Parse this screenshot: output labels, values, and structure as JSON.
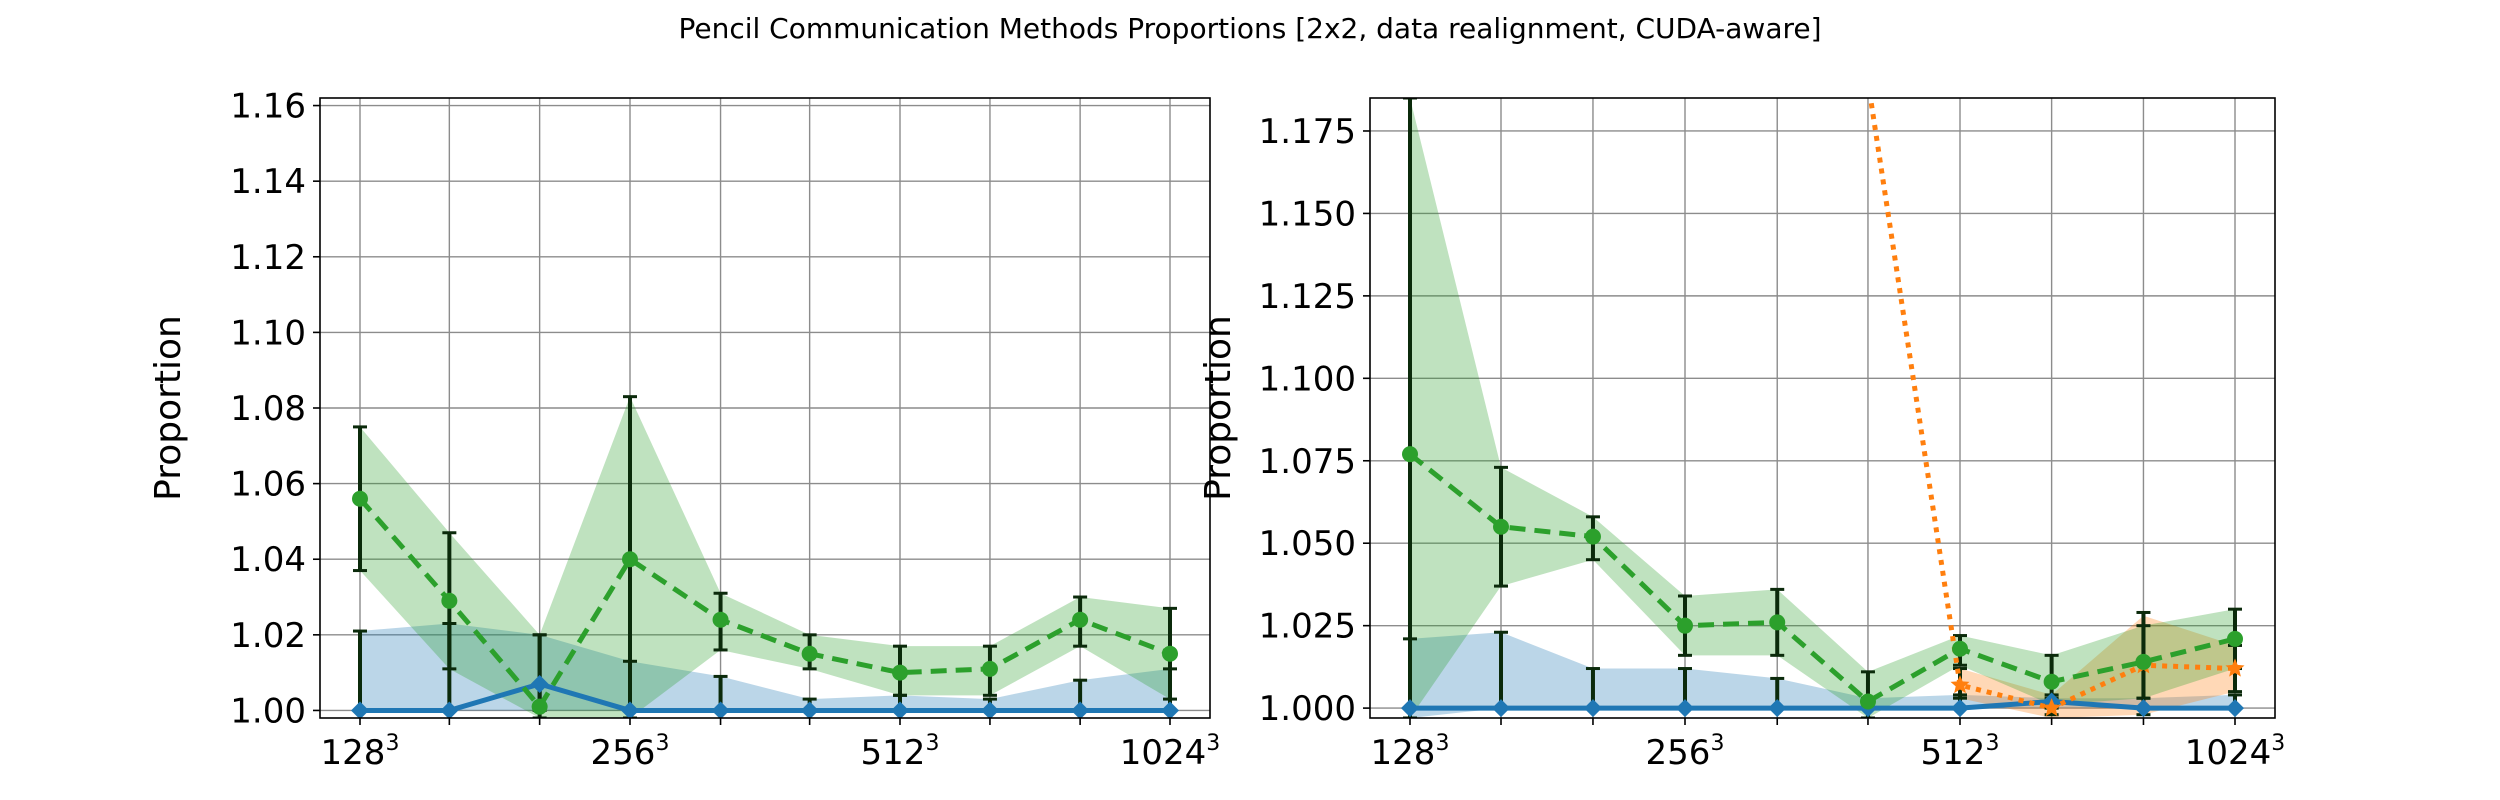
{
  "figure": {
    "title": "Pencil Communication Methods Proportions [2x2, data realignment, CUDA-aware]"
  },
  "colors": {
    "blue": "#1f77b4",
    "orange": "#ff7f0e",
    "green": "#2ca02c",
    "errorbar": "#0b2a0b",
    "grid": "#8c8c8c"
  },
  "chart_data": [
    {
      "type": "line",
      "title": "",
      "xlabel": "",
      "ylabel": "Proportion",
      "x_tick_labels": [
        {
          "base": "128",
          "exp": "3",
          "x": 128
        },
        {
          "base": "256",
          "exp": "3",
          "x": 256
        },
        {
          "base": "512",
          "exp": "3",
          "x": 512
        },
        {
          "base": "1024",
          "exp": "3",
          "x": 1024
        }
      ],
      "x": [
        128,
        161,
        203,
        256,
        323,
        406,
        512,
        645,
        813,
        1024
      ],
      "xscale": "log2",
      "ylim": [
        0.998,
        1.162
      ],
      "y_ticks": [
        "1.00",
        "1.02",
        "1.04",
        "1.06",
        "1.08",
        "1.10",
        "1.12",
        "1.14",
        "1.16"
      ],
      "y_tick_values": [
        1.0,
        1.02,
        1.04,
        1.06,
        1.08,
        1.1,
        1.12,
        1.14,
        1.16
      ],
      "grid": true,
      "series": [
        {
          "color": "#1f77b4",
          "linestyle": "solid",
          "marker": "diamond",
          "values": [
            1.0,
            1.0,
            1.007,
            1.0,
            1.0,
            1.0,
            1.0,
            1.0,
            1.0,
            1.0
          ],
          "band_low": [
            1.0,
            1.0,
            1.0,
            1.0,
            1.0,
            1.0,
            1.0,
            1.0,
            1.0,
            1.0
          ],
          "band_high": [
            1.021,
            1.023,
            1.02,
            1.013,
            1.009,
            1.003,
            1.004,
            1.003,
            1.008,
            1.011
          ],
          "err_low": [
            1.0,
            1.0,
            1.0,
            1.0,
            1.0,
            1.0,
            1.0,
            1.0,
            1.0,
            1.0
          ],
          "err_high": [
            1.021,
            1.023,
            1.02,
            1.013,
            1.009,
            1.003,
            1.004,
            1.003,
            1.008,
            1.011
          ]
        },
        {
          "color": "#2ca02c",
          "linestyle": "dashed",
          "marker": "circle",
          "values": [
            1.056,
            1.029,
            1.001,
            1.04,
            1.024,
            1.015,
            1.01,
            1.011,
            1.024,
            1.015
          ],
          "band_low": [
            1.037,
            1.011,
            0.998,
            0.998,
            1.016,
            1.011,
            1.004,
            1.004,
            1.017,
            1.003
          ],
          "band_high": [
            1.075,
            1.047,
            1.02,
            1.083,
            1.031,
            1.02,
            1.017,
            1.017,
            1.03,
            1.027
          ],
          "err_low": [
            1.037,
            1.011,
            0.998,
            0.998,
            1.016,
            1.011,
            1.004,
            1.004,
            1.017,
            1.003
          ],
          "err_high": [
            1.075,
            1.047,
            1.02,
            1.083,
            1.031,
            1.02,
            1.017,
            1.017,
            1.03,
            1.027
          ]
        }
      ]
    },
    {
      "type": "line",
      "title": "",
      "xlabel": "",
      "ylabel": "Proportion",
      "x_tick_labels": [
        {
          "base": "128",
          "exp": "3",
          "x": 128
        },
        {
          "base": "256",
          "exp": "3",
          "x": 256
        },
        {
          "base": "512",
          "exp": "3",
          "x": 512
        },
        {
          "base": "1024",
          "exp": "3",
          "x": 1024
        }
      ],
      "x": [
        128,
        161,
        203,
        256,
        323,
        406,
        512,
        645,
        813,
        1024
      ],
      "xscale": "log2",
      "ylim": [
        0.997,
        1.185
      ],
      "y_ticks": [
        "1.000",
        "1.025",
        "1.050",
        "1.075",
        "1.100",
        "1.125",
        "1.150",
        "1.175"
      ],
      "y_tick_values": [
        1.0,
        1.025,
        1.05,
        1.075,
        1.1,
        1.125,
        1.15,
        1.175
      ],
      "grid": true,
      "series": [
        {
          "color": "#1f77b4",
          "linestyle": "solid",
          "marker": "diamond",
          "values": [
            1.0,
            1.0,
            1.0,
            1.0,
            1.0,
            1.0,
            1.0,
            1.002,
            1.0,
            1.0
          ],
          "band_low": [
            0.997,
            1.0,
            1.0,
            1.0,
            1.0,
            1.0,
            1.0,
            1.0,
            1.0,
            1.0
          ],
          "band_high": [
            1.021,
            1.023,
            1.012,
            1.012,
            1.009,
            1.003,
            1.004,
            1.003,
            1.003,
            1.004
          ],
          "err_low": [
            1.0,
            1.0,
            1.0,
            1.0,
            1.0,
            1.0,
            1.0,
            1.0,
            1.0,
            1.0
          ],
          "err_high": [
            1.021,
            1.023,
            1.012,
            1.012,
            1.009,
            1.003,
            1.004,
            1.003,
            1.003,
            1.004
          ]
        },
        {
          "color": "#ff7f0e",
          "linestyle": "dotted",
          "marker": "star",
          "x_start": 5,
          "values": [
            null,
            null,
            null,
            null,
            null,
            1.19,
            1.007,
            1.0,
            1.013,
            1.012
          ],
          "band_low": [
            null,
            null,
            null,
            null,
            null,
            null,
            1.003,
            0.997,
            0.998,
            1.005
          ],
          "band_high": [
            null,
            null,
            null,
            null,
            null,
            null,
            1.012,
            1.004,
            1.028,
            1.019
          ],
          "err_low": [
            null,
            null,
            null,
            null,
            null,
            null,
            1.003,
            0.998,
            0.998,
            1.005
          ],
          "err_high": [
            null,
            null,
            null,
            null,
            null,
            null,
            1.012,
            1.004,
            1.029,
            1.019
          ]
        },
        {
          "color": "#2ca02c",
          "linestyle": "dashed",
          "marker": "circle",
          "values": [
            1.077,
            1.055,
            1.052,
            1.025,
            1.026,
            1.002,
            1.018,
            1.008,
            1.014,
            1.021
          ],
          "band_low": [
            0.997,
            1.037,
            1.045,
            1.016,
            1.016,
            0.997,
            1.013,
            1.001,
            1.003,
            1.012
          ],
          "band_high": [
            1.185,
            1.073,
            1.058,
            1.034,
            1.036,
            1.011,
            1.022,
            1.016,
            1.025,
            1.03
          ],
          "err_low": [
            0.997,
            1.037,
            1.045,
            1.016,
            1.016,
            0.997,
            1.013,
            1.001,
            1.003,
            1.012
          ],
          "err_high": [
            1.185,
            1.073,
            1.058,
            1.034,
            1.036,
            1.011,
            1.022,
            1.016,
            1.025,
            1.03
          ]
        }
      ]
    }
  ]
}
